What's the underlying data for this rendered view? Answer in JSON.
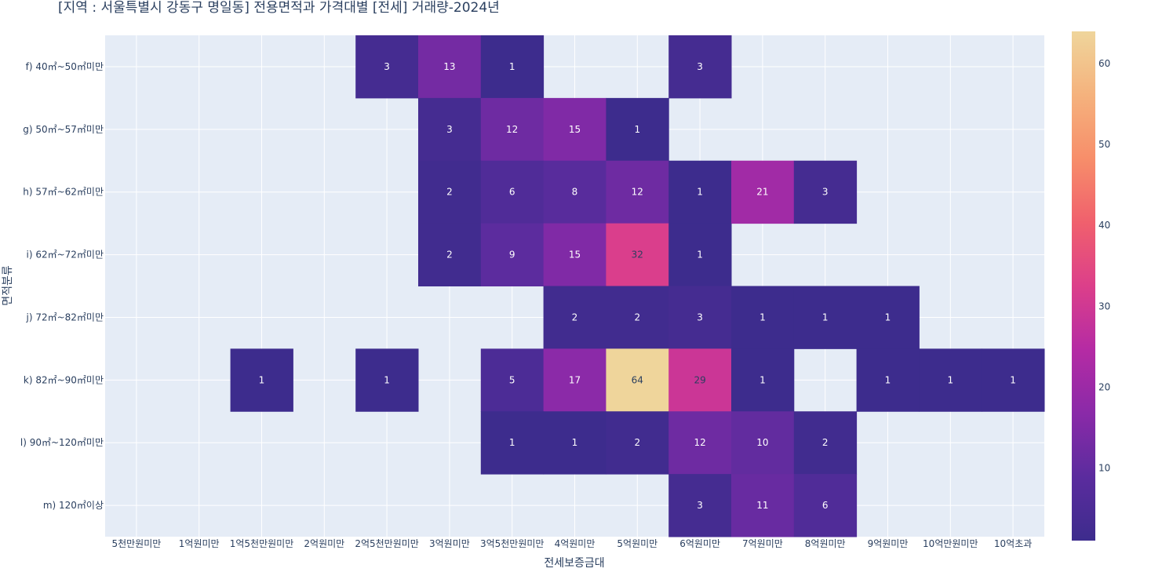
{
  "chart_data": {
    "type": "heatmap",
    "title": "[지역 : 서울특별시 강동구 명일동] 전용면적과 가격대별 [전세] 거래량-2024년",
    "xlabel": "전세보증금대",
    "ylabel": "면적분류",
    "x_categories": [
      "5천만원미만",
      "1억원미만",
      "1억5천만원미만",
      "2억원미만",
      "2억5천만원미만",
      "3억원미만",
      "3억5천만원미만",
      "4억원미만",
      "5억원미만",
      "6억원미만",
      "7억원미만",
      "8억원미만",
      "9억원미만",
      "10억만원미만",
      "10억초과"
    ],
    "y_categories": [
      "f) 40㎡~50㎡미만",
      "g) 50㎡~57㎡미만",
      "h) 57㎡~62㎡미만",
      "i) 62㎡~72㎡미만",
      "j) 72㎡~82㎡미만",
      "k) 82㎡~90㎡미만",
      "l) 90㎡~120㎡미만",
      "m) 120㎡이상"
    ],
    "values": [
      [
        null,
        null,
        null,
        null,
        3,
        13,
        1,
        null,
        null,
        3,
        null,
        null,
        null,
        null,
        null
      ],
      [
        null,
        null,
        null,
        null,
        null,
        3,
        12,
        15,
        1,
        null,
        null,
        null,
        null,
        null,
        null
      ],
      [
        null,
        null,
        null,
        null,
        null,
        2,
        6,
        8,
        12,
        1,
        21,
        3,
        null,
        null,
        null
      ],
      [
        null,
        null,
        null,
        null,
        null,
        2,
        9,
        15,
        32,
        1,
        null,
        null,
        null,
        null,
        null
      ],
      [
        null,
        null,
        null,
        null,
        null,
        null,
        null,
        2,
        2,
        3,
        1,
        1,
        1,
        null,
        null
      ],
      [
        null,
        null,
        1,
        null,
        1,
        null,
        5,
        17,
        64,
        29,
        1,
        null,
        1,
        1,
        1
      ],
      [
        null,
        null,
        null,
        null,
        null,
        null,
        1,
        1,
        2,
        12,
        10,
        2,
        null,
        null,
        null
      ],
      [
        null,
        null,
        null,
        null,
        null,
        null,
        null,
        null,
        null,
        3,
        11,
        6,
        null,
        null,
        null
      ]
    ],
    "colorbar": {
      "range": [
        1,
        64
      ],
      "ticks": [
        10,
        20,
        30,
        40,
        50,
        60
      ]
    },
    "colorscale": [
      "#3d2c8d",
      "#5b2c9e",
      "#8a2aa8",
      "#b52ba4",
      "#dc3f8a",
      "#f0606d",
      "#f78e6a",
      "#f5b27d",
      "#efd59b"
    ],
    "background_color": "#e5ecf6",
    "grid": true
  }
}
